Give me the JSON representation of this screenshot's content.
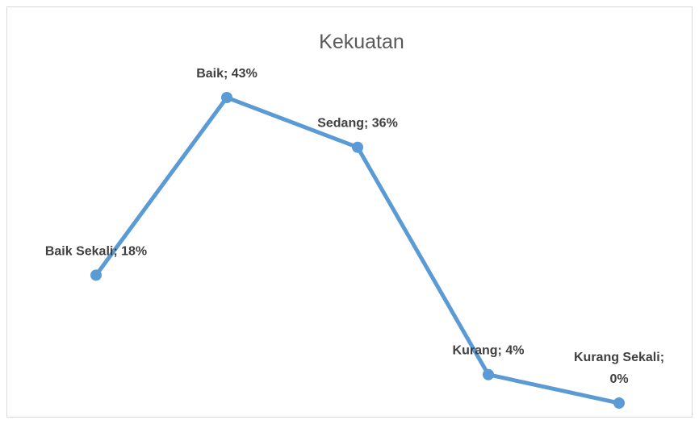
{
  "chart_data": {
    "type": "line",
    "title": "Kekuatan",
    "categories": [
      "Baik Sekali",
      "Baik",
      "Sedang",
      "Kurang",
      "Kurang Sekali"
    ],
    "values": [
      18,
      43,
      36,
      4,
      0
    ],
    "value_labels": [
      "Baik Sekali; 18%",
      "Baik; 43%",
      "Sedang; 36%",
      "Kurang; 4%",
      "Kurang Sekali; 0%"
    ],
    "color": "#5b9bd5"
  }
}
